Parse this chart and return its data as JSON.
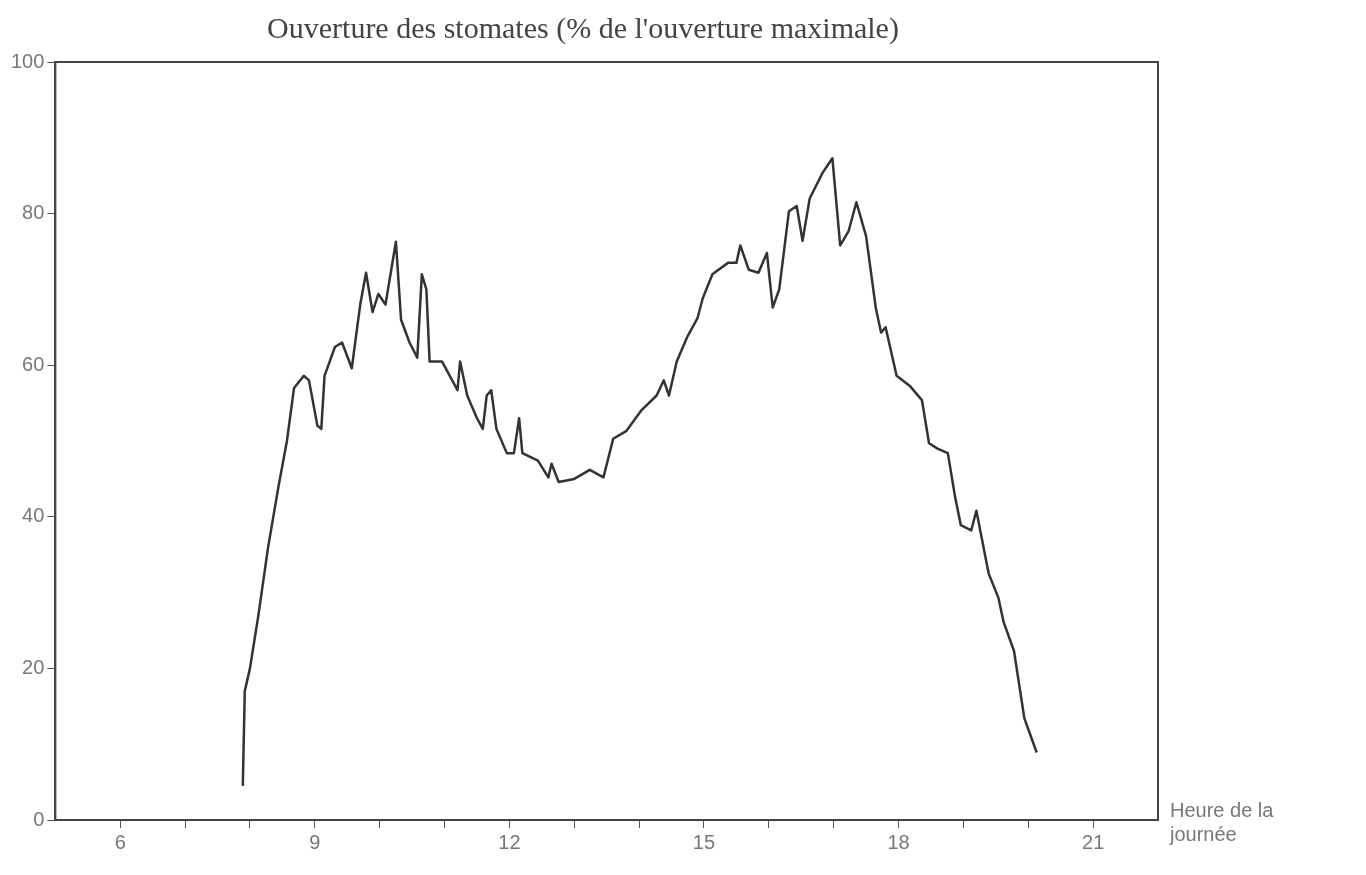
{
  "chart_data": {
    "type": "line",
    "title": "Ouverture des stomates (% de l'ouverture maximale)",
    "xlabel": "Heure de la journée",
    "xlim": [
      5,
      22
    ],
    "xticks": [
      {
        "value": 6,
        "label": "6"
      },
      {
        "value": 7,
        "label": null
      },
      {
        "value": 8,
        "label": null
      },
      {
        "value": 9,
        "label": "9"
      },
      {
        "value": 10,
        "label": null
      },
      {
        "value": 11,
        "label": null
      },
      {
        "value": 12,
        "label": "12"
      },
      {
        "value": 13,
        "label": null
      },
      {
        "value": 14,
        "label": null
      },
      {
        "value": 15,
        "label": "15"
      },
      {
        "value": 16,
        "label": null
      },
      {
        "value": 17,
        "label": null
      },
      {
        "value": 18,
        "label": "18"
      },
      {
        "value": 19,
        "label": null
      },
      {
        "value": 20,
        "label": null
      },
      {
        "value": 21,
        "label": "21"
      }
    ],
    "ylim": [
      0,
      100
    ],
    "yticks": [
      0,
      20,
      40,
      60,
      80,
      100
    ],
    "grid": false,
    "legend": false,
    "marker": "none",
    "line_style": "solid",
    "series": [
      {
        "color": "#333333",
        "x": [
          7.89,
          7.92,
          8.0,
          8.13,
          8.28,
          8.44,
          8.57,
          8.68,
          8.83,
          8.91,
          9.04,
          9.1,
          9.15,
          9.31,
          9.42,
          9.57,
          9.7,
          9.79,
          9.89,
          9.98,
          10.09,
          10.25,
          10.33,
          10.46,
          10.58,
          10.65,
          10.72,
          10.77,
          10.96,
          11.2,
          11.24,
          11.35,
          11.5,
          11.59,
          11.65,
          11.72,
          11.8,
          11.96,
          12.07,
          12.15,
          12.2,
          12.44,
          12.6,
          12.65,
          12.76,
          13.0,
          13.24,
          13.45,
          13.6,
          13.8,
          14.03,
          14.27,
          14.38,
          14.46,
          14.58,
          14.74,
          14.9,
          14.98,
          15.13,
          15.37,
          15.5,
          15.56,
          15.69,
          15.84,
          15.97,
          16.06,
          16.16,
          16.31,
          16.43,
          16.52,
          16.63,
          16.83,
          16.98,
          17.1,
          17.23,
          17.35,
          17.5,
          17.65,
          17.73,
          17.8,
          17.97,
          18.17,
          18.36,
          18.47,
          18.6,
          18.76,
          18.87,
          18.96,
          19.12,
          19.2,
          19.39,
          19.54,
          19.62,
          19.78,
          19.94,
          20.13
        ],
        "values": [
          4.5,
          17,
          20,
          27,
          36,
          44,
          50,
          57,
          58.6,
          58,
          52,
          51.6,
          58.6,
          62.4,
          63,
          59.6,
          68,
          72.2,
          67,
          69.4,
          68,
          76.3,
          66,
          63,
          61,
          72,
          70,
          60.5,
          60.5,
          56.7,
          60.5,
          56,
          53,
          51.6,
          56,
          56.7,
          51.6,
          48.4,
          48.4,
          53,
          48.4,
          47.4,
          45.2,
          47,
          44.6,
          45,
          46.2,
          45.2,
          50.3,
          51.3,
          54,
          56,
          58,
          56,
          60.5,
          63.7,
          66.2,
          68.8,
          72,
          73.5,
          73.5,
          75.8,
          72.6,
          72.2,
          74.8,
          67.6,
          70,
          80.3,
          81,
          76.4,
          82,
          85.4,
          87.3,
          75.8,
          77.7,
          81.5,
          77,
          67.5,
          64.3,
          65,
          58.6,
          57.3,
          55.4,
          49.7,
          49,
          48.4,
          42.7,
          38.9,
          38.2,
          40.8,
          32.5,
          29.3,
          26.1,
          22.3,
          13.4,
          8.9
        ]
      }
    ]
  }
}
